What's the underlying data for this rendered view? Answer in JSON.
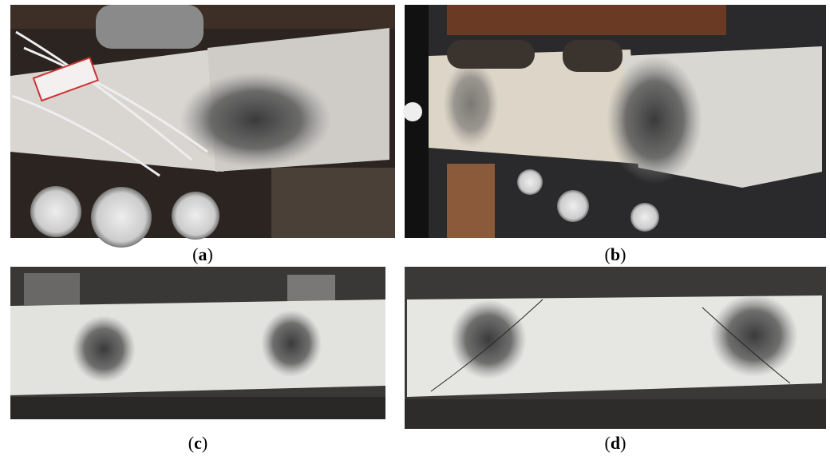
{
  "panels": [
    {
      "caption": {
        "open": "(",
        "letter": "a",
        "close": ")"
      }
    },
    {
      "caption": {
        "open": "(",
        "letter": "b",
        "close": ")"
      }
    },
    {
      "caption": {
        "open": "(",
        "letter": "c",
        "close": ")"
      }
    },
    {
      "caption": {
        "open": "(",
        "letter": "d",
        "close": ")"
      }
    }
  ]
}
